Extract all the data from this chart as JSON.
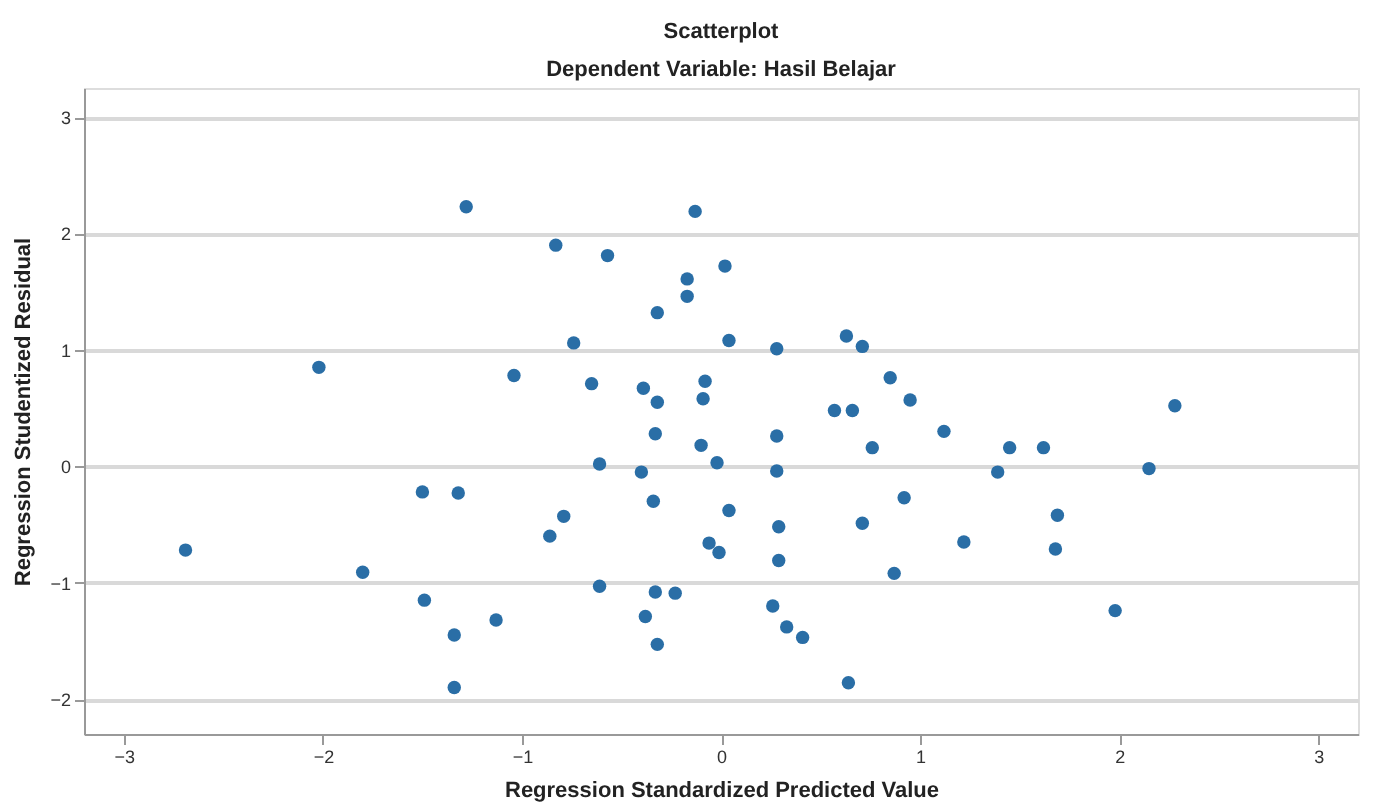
{
  "chart_data": {
    "type": "scatter",
    "title": "Scatterplot",
    "subtitle": "Dependent Variable: Hasil Belajar",
    "xlabel": "Regression Standardized Predicted Value",
    "ylabel": "Regression Studentized Residual",
    "xlim": [
      -3.2,
      3.2
    ],
    "ylim": [
      -2.3,
      3.25
    ],
    "xticks": [
      -3,
      -2,
      -1,
      0,
      1,
      2,
      3
    ],
    "yticks": [
      -2,
      -1,
      0,
      1,
      2,
      3
    ],
    "grid": "y",
    "marker": "circle",
    "legend": false,
    "series": [
      {
        "color": "#2a6ea6",
        "x": [
          -1.28,
          -0.13,
          -0.83,
          -0.57,
          0.02,
          -0.17,
          -0.17,
          -0.32,
          -0.74,
          0.04,
          -2.02,
          -1.04,
          -0.65,
          -0.39,
          -0.08,
          -0.32,
          -0.09,
          -0.33,
          -0.1,
          -0.02,
          -0.61,
          -0.4,
          -1.5,
          -1.32,
          -0.34,
          0.04,
          -0.79,
          -0.86,
          -2.69,
          -0.06,
          -0.01,
          -1.8,
          -0.61,
          -0.33,
          -0.23,
          -1.49,
          -0.38,
          -1.13,
          -1.34,
          -0.32,
          -1.34,
          0.28,
          0.63,
          0.71,
          0.85,
          0.95,
          0.57,
          0.66,
          2.28,
          1.12,
          0.28,
          0.76,
          1.45,
          1.62,
          1.39,
          2.15,
          0.28,
          0.92,
          0.29,
          0.71,
          1.69,
          1.22,
          1.68,
          0.29,
          0.87,
          0.26,
          1.98,
          0.33,
          0.41,
          0.64
        ],
        "values": [
          2.23,
          2.19,
          1.9,
          1.81,
          1.72,
          1.61,
          1.46,
          1.32,
          1.06,
          1.08,
          0.85,
          0.78,
          0.71,
          0.67,
          0.73,
          0.55,
          0.58,
          0.28,
          0.18,
          0.03,
          0.02,
          -0.05,
          -0.22,
          -0.23,
          -0.3,
          -0.38,
          -0.43,
          -0.6,
          -0.72,
          -0.66,
          -0.74,
          -0.91,
          -1.03,
          -1.08,
          -1.09,
          -1.15,
          -1.29,
          -1.32,
          -1.45,
          -1.53,
          -1.9,
          1.01,
          1.12,
          1.03,
          0.76,
          0.57,
          0.48,
          0.48,
          0.52,
          0.3,
          0.26,
          0.16,
          0.16,
          0.16,
          -0.05,
          -0.02,
          -0.04,
          -0.27,
          -0.52,
          -0.49,
          -0.42,
          -0.65,
          -0.71,
          -0.81,
          -0.92,
          -1.2,
          -1.24,
          -1.38,
          -1.47,
          -1.86
        ]
      }
    ]
  }
}
